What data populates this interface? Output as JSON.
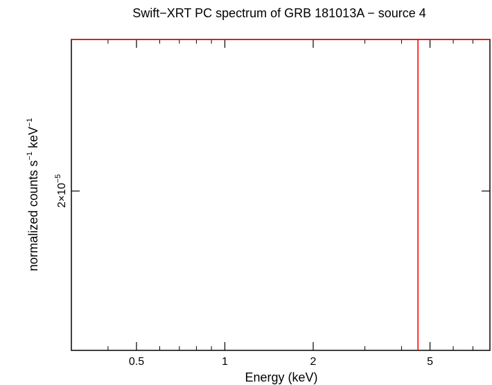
{
  "chart_data": {
    "type": "line",
    "title": "Swift−XRT PC spectrum of GRB 181013A − source 4",
    "xlabel": "Energy (keV)",
    "ylabel_parts": {
      "a": "normalized counts s",
      "a_sup": "−1",
      "b": " keV",
      "b_sup": "−1"
    },
    "x_scale": "log",
    "y_scale": "log",
    "xlim": [
      0.3,
      8.0
    ],
    "ylim": [
      1.9e-05,
      2.1e-05
    ],
    "x_ticks": [
      {
        "value": 0.5,
        "label": "0.5"
      },
      {
        "value": 1,
        "label": "1"
      },
      {
        "value": 2,
        "label": "2"
      },
      {
        "value": 5,
        "label": "5"
      }
    ],
    "x_minor_ticks": [
      0.4,
      0.6,
      0.7,
      0.8,
      0.9,
      3,
      4,
      6,
      7,
      8
    ],
    "y_ticks": [
      {
        "value": 2e-05,
        "base": "2×10",
        "exp": "−5"
      }
    ],
    "series": [
      {
        "color": "#ff0000",
        "horizontal_y": 2.1e-05,
        "vertical_x": 4.55
      }
    ],
    "grid": false
  }
}
